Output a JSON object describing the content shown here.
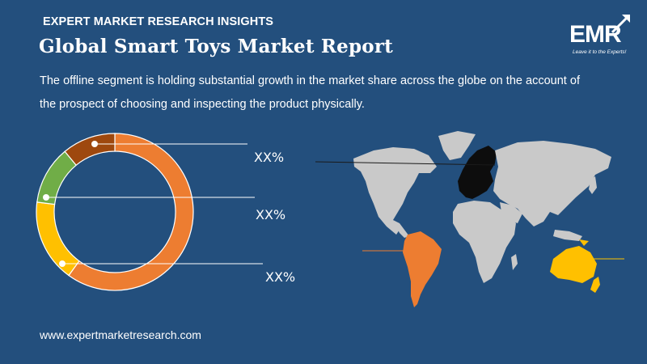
{
  "header": {
    "kicker": "EXPERT MARKET RESEARCH INSIGHTS",
    "title": "Global Smart Toys Market Report",
    "description": "The offline segment is holding substantial growth in the market share across the globe on the account of the prospect of choosing and inspecting the product physically."
  },
  "logo": {
    "text": "EMR",
    "tagline": "Leave it to the Experts!"
  },
  "footer": {
    "url": "www.expertmarketresearch.com"
  },
  "chart_data": [
    {
      "type": "pie",
      "variant": "donut",
      "slices": [
        {
          "value": 60,
          "color": "#ed7d31"
        },
        {
          "value": 17,
          "color": "#ffc000"
        },
        {
          "value": 12,
          "color": "#70ad47"
        },
        {
          "value": 11,
          "color": "#9e480e"
        }
      ],
      "labels": [
        "XX%",
        "XX%",
        "XX%"
      ]
    }
  ],
  "map": {
    "highlight_colors": {
      "europe": "#0d0d0d",
      "south_america": "#ed7d31",
      "oceania": "#ffc000",
      "other": "#c9c9c9"
    }
  }
}
